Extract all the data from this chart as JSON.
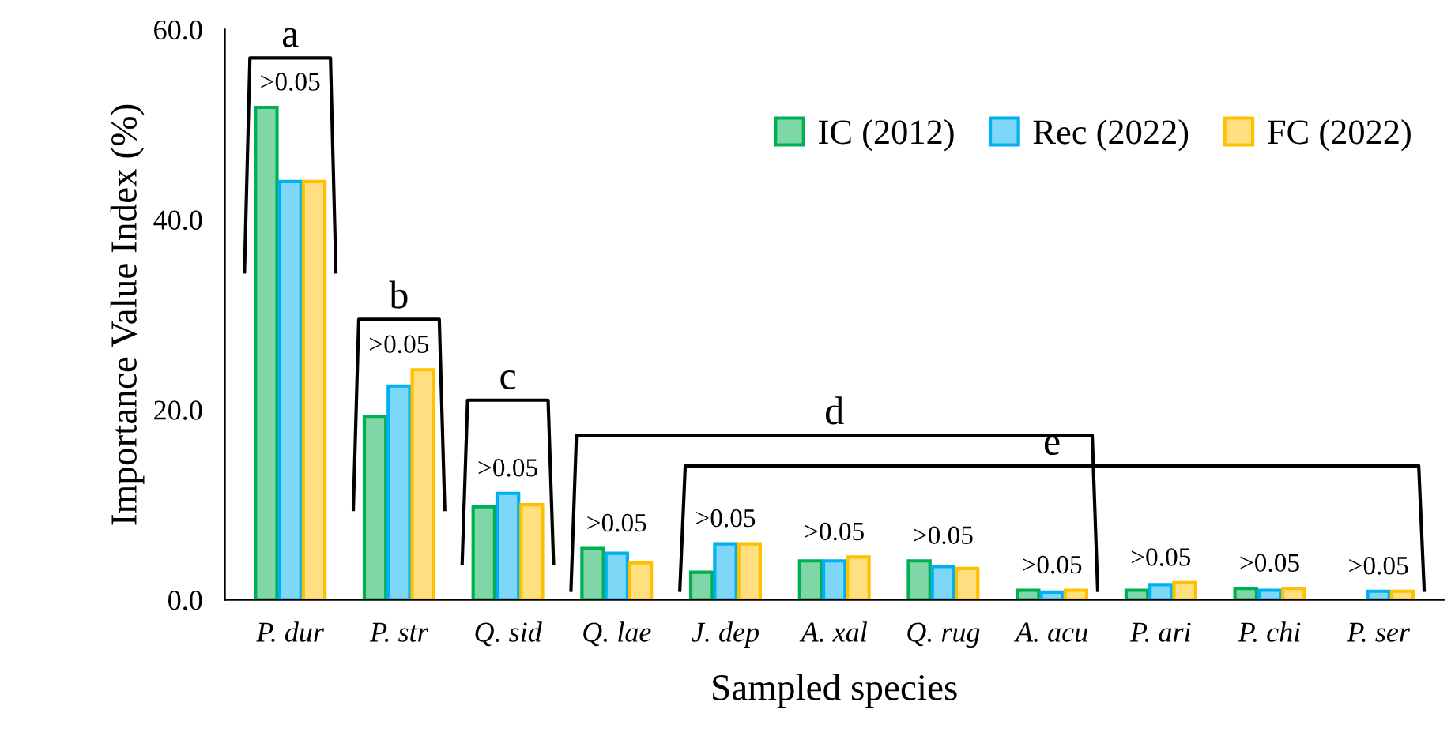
{
  "chart_data": {
    "type": "bar",
    "xlabel": "Sampled species",
    "ylabel": "Importance Value Index (%)",
    "categories": [
      "P. dur",
      "P. str",
      "Q. sid",
      "Q. lae",
      "J. dep",
      "A. xal",
      "Q. rug",
      "A. acu",
      "P. ari",
      "P. chi",
      "P. ser"
    ],
    "series": [
      {
        "name": "IC (2012)",
        "color": "#00b050",
        "values": [
          51.8,
          19.3,
          9.8,
          5.4,
          2.9,
          4.1,
          4.1,
          1.0,
          1.0,
          1.2,
          null
        ]
      },
      {
        "name": "Rec (2022)",
        "color": "#00b0f0",
        "values": [
          44.0,
          22.5,
          11.2,
          4.9,
          5.9,
          4.1,
          3.5,
          0.8,
          1.6,
          1.0,
          0.9
        ]
      },
      {
        "name": "FC (2022)",
        "color": "#ffc000",
        "values": [
          44.0,
          24.2,
          10.0,
          3.9,
          5.9,
          4.5,
          3.3,
          1.0,
          1.8,
          1.2,
          0.9
        ]
      }
    ],
    "ylim": [
      0,
      60
    ],
    "yticks": [
      {
        "value": 0,
        "label": "0.0"
      },
      {
        "value": 20,
        "label": "20.0"
      },
      {
        "value": 40,
        "label": "40.0"
      },
      {
        "value": 60,
        "label": "60.0"
      }
    ],
    "legend": "top right",
    "grid": false,
    "annotations": [
      "a",
      "b",
      "c",
      "d",
      "e",
      ">0.05",
      ">0.05",
      ">0.05",
      ">0.05",
      ">0.05",
      ">0.05",
      ">0.05",
      ">0.05",
      ">0.05",
      ">0.05",
      ">0.05"
    ]
  }
}
